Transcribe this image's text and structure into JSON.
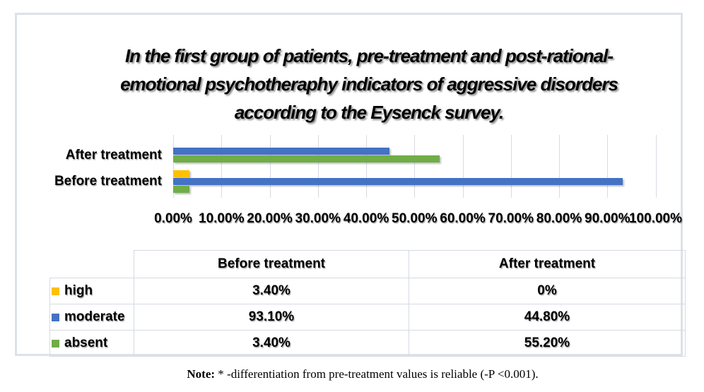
{
  "chart": {
    "title_lines": [
      "In the first group of patients, pre-treatment and post-rational-",
      "emotional psychotheraphy indicators of aggressive disorders",
      "according to the Eysenck survey."
    ]
  },
  "chart_data": {
    "type": "bar",
    "orientation": "horizontal",
    "title": "In the first group of patients, pre-treatment and post-rational-emotional psychotheraphy indicators of aggressive disorders according to the Eysenck survey.",
    "categories": [
      "After treatment",
      "Before treatment"
    ],
    "series": [
      {
        "name": "high",
        "color": "#FFC000",
        "values": [
          0,
          3.4
        ]
      },
      {
        "name": "moderate",
        "color": "#4472C4",
        "values": [
          44.8,
          93.1
        ]
      },
      {
        "name": "absent",
        "color": "#70AD47",
        "values": [
          55.2,
          3.4
        ]
      }
    ],
    "xlim": [
      0,
      100
    ],
    "x_tick_labels": [
      "0.00%",
      "10.00%",
      "20.00%",
      "30.00%",
      "40.00%",
      "50.00%",
      "60.00%",
      "70.00%",
      "80.00%",
      "90.00%",
      "100.00%"
    ],
    "grid": true,
    "legend_position": "table-row-headers"
  },
  "table": {
    "col_headers": [
      "Before treatment",
      "After treatment"
    ],
    "rows": [
      {
        "label": "high",
        "swatch": "#FFC000",
        "values": [
          "3.40%",
          "0%"
        ]
      },
      {
        "label": "moderate",
        "swatch": "#4472C4",
        "values": [
          "93.10%",
          "44.80%"
        ]
      },
      {
        "label": "absent",
        "swatch": "#70AD47",
        "values": [
          "3.40%",
          "55.20%"
        ]
      }
    ]
  },
  "note": {
    "label": "Note:",
    "text": " * -differentiation from pre-treatment values is reliable (-P <0.001)."
  }
}
